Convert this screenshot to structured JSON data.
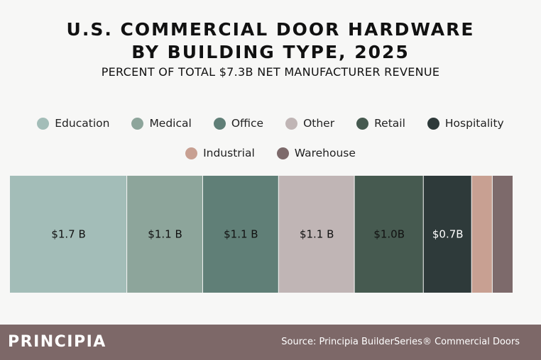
{
  "header": {
    "title_line1": "U.S. COMMERCIAL DOOR HARDWARE",
    "title_line2": "BY BUILDING TYPE, 2025",
    "subtitle": "PERCENT OF TOTAL $7.3B NET MANUFACTURER REVENUE"
  },
  "chart_data": {
    "type": "bar",
    "orientation": "horizontal-stacked-100",
    "title": "U.S. COMMERCIAL DOOR HARDWARE BY BUILDING TYPE, 2025",
    "subtitle": "PERCENT OF TOTAL $7.3B NET MANUFACTURER REVENUE",
    "unit": "$B",
    "total": 7.3,
    "legend_position": "top",
    "grid": false,
    "series": [
      {
        "name": "Education",
        "value": 1.7,
        "label": "$1.7 B",
        "color": "#a3bdb8",
        "label_color": "#111111"
      },
      {
        "name": "Medical",
        "value": 1.1,
        "label": "$1.1 B",
        "color": "#8da59b",
        "label_color": "#111111"
      },
      {
        "name": "Office",
        "value": 1.1,
        "label": "$1.1 B",
        "color": "#607f77",
        "label_color": "#111111"
      },
      {
        "name": "Other",
        "value": 1.1,
        "label": "$1.1 B",
        "color": "#c0b5b5",
        "label_color": "#111111"
      },
      {
        "name": "Retail",
        "value": 1.0,
        "label": "$1.0B",
        "color": "#465a50",
        "label_color": "#111111"
      },
      {
        "name": "Hospitality",
        "value": 0.7,
        "label": "$0.7B",
        "color": "#2e3a3a",
        "label_color": "#ffffff"
      },
      {
        "name": "Industrial",
        "value": 0.3,
        "label": "",
        "color": "#c8a092",
        "label_color": "#111111"
      },
      {
        "name": "Warehouse",
        "value": 0.3,
        "label": "",
        "color": "#7d6a6b",
        "label_color": "#111111"
      }
    ]
  },
  "footer": {
    "brand": "PRINCIPIA",
    "source": "Source: Principia BuilderSeries® Commercial Doors"
  }
}
